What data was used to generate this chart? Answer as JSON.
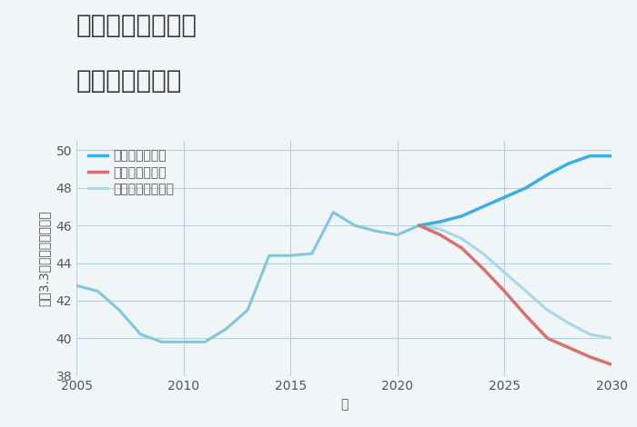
{
  "title_line1": "愛知県知立市西の",
  "title_line2": "土地の価格推移",
  "xlabel": "年",
  "ylabel": "平（3.3㎡）単価（万円）",
  "background_color": "#f0f5f8",
  "plot_background": "#f0f5f8",
  "ylim": [
    38,
    50.5
  ],
  "xlim": [
    2005,
    2030
  ],
  "yticks": [
    38,
    40,
    42,
    44,
    46,
    48,
    50
  ],
  "xticks": [
    2005,
    2010,
    2015,
    2020,
    2025,
    2030
  ],
  "historical": {
    "years": [
      2005,
      2006,
      2007,
      2008,
      2009,
      2010,
      2011,
      2012,
      2013,
      2014,
      2015,
      2016,
      2017,
      2018,
      2019,
      2020,
      2021
    ],
    "values": [
      42.8,
      42.5,
      41.5,
      40.2,
      39.8,
      39.8,
      39.8,
      40.5,
      41.5,
      44.4,
      44.4,
      44.5,
      46.7,
      46.0,
      45.7,
      45.5,
      46.0
    ],
    "color": "#7fc8d8",
    "linewidth": 2.2
  },
  "good": {
    "years": [
      2021,
      2022,
      2023,
      2024,
      2025,
      2026,
      2027,
      2028,
      2029,
      2030
    ],
    "values": [
      46.0,
      46.2,
      46.5,
      47.0,
      47.5,
      48.0,
      48.7,
      49.3,
      49.7,
      49.7
    ],
    "color": "#3daee0",
    "linewidth": 2.5,
    "label": "グッドシナリオ"
  },
  "bad": {
    "years": [
      2021,
      2022,
      2023,
      2024,
      2025,
      2026,
      2027,
      2028,
      2029,
      2030
    ],
    "values": [
      46.0,
      45.5,
      44.8,
      43.7,
      42.5,
      41.2,
      40.0,
      39.5,
      39.0,
      38.6
    ],
    "color": "#d9706e",
    "linewidth": 2.5,
    "label": "バッドシナリオ"
  },
  "normal": {
    "years": [
      2021,
      2022,
      2023,
      2024,
      2025,
      2026,
      2027,
      2028,
      2029,
      2030
    ],
    "values": [
      46.0,
      45.8,
      45.3,
      44.5,
      43.5,
      42.5,
      41.5,
      40.8,
      40.2,
      40.0
    ],
    "color": "#a8d8e8",
    "linewidth": 2.2,
    "label": "ノーマルシナリオ"
  },
  "legend_fontsize": 10,
  "title_fontsize": 20,
  "axis_label_fontsize": 10,
  "tick_fontsize": 10
}
